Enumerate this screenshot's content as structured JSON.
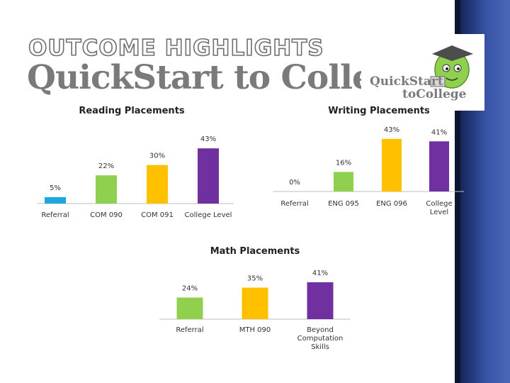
{
  "header": {
    "title": "OUTCOME HIGHLIGHTS",
    "subtitle_part1": "Quick",
    "subtitle_part2": "Start to College"
  },
  "logo": {
    "line1": "QuickStart",
    "line2": "toCollege"
  },
  "colors": {
    "referral_reading": "#1ca7e0",
    "green": "#8fd14f",
    "yellow": "#ffc000",
    "purple": "#7030a0",
    "side_panel": "#2f4a9c"
  },
  "chart_data": [
    {
      "type": "bar",
      "title": "Reading Placements",
      "categories": [
        "Referral",
        "COM 090",
        "COM 091",
        "College Level"
      ],
      "values": [
        5,
        22,
        30,
        43
      ],
      "labels": [
        "5%",
        "22%",
        "30%",
        "43%"
      ],
      "colors": [
        "#1ca7e0",
        "#8fd14f",
        "#ffc000",
        "#7030a0"
      ]
    },
    {
      "type": "bar",
      "title": "Writing Placements",
      "categories": [
        "Referral",
        "ENG 095",
        "ENG 096",
        "College Level"
      ],
      "values": [
        0,
        16,
        43,
        41
      ],
      "labels": [
        "0%",
        "16%",
        "43%",
        "41%"
      ],
      "colors": [
        "#1ca7e0",
        "#8fd14f",
        "#ffc000",
        "#7030a0"
      ]
    },
    {
      "type": "bar",
      "title": "Math Placements",
      "categories": [
        "Referral",
        "MTH 090",
        "Beyond Computation Skills"
      ],
      "values": [
        24,
        35,
        41
      ],
      "labels": [
        "24%",
        "35%",
        "41%"
      ],
      "colors": [
        "#8fd14f",
        "#ffc000",
        "#7030a0"
      ]
    }
  ]
}
